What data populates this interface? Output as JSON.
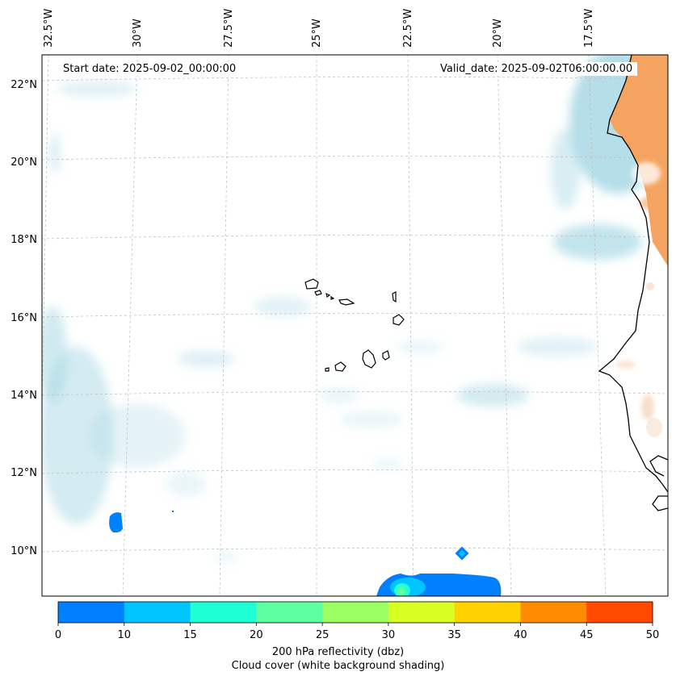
{
  "header": {
    "start_date": "Start date: 2025-09-02_00:00:00",
    "valid_date": "Valid_date: 2025-09-02T06:00:00.00"
  },
  "map": {
    "longitude_labels": [
      "32.5°W",
      "30°W",
      "27.5°W",
      "25°W",
      "22.5°W",
      "20°W",
      "17.5°W"
    ],
    "latitude_labels": [
      "22°N",
      "20°N",
      "18°N",
      "16°N",
      "14°N",
      "12°N",
      "10°N"
    ],
    "extent": {
      "lon_min": -33,
      "lon_max": -15.6,
      "lat_min": 8.9,
      "lat_max": 22.8
    },
    "features": [
      "Cabo Verde islands",
      "West African coastline"
    ],
    "colors": {
      "land_heat": "#f4a460",
      "cloud_shade": "#a8d8e4",
      "coastline": "#000000",
      "gridline": "#bbbbbb"
    }
  },
  "colorbar": {
    "levels": [
      0,
      10,
      15,
      20,
      25,
      30,
      35,
      40,
      45,
      50
    ],
    "tick_labels": [
      "0",
      "10",
      "15",
      "20",
      "25",
      "30",
      "35",
      "40",
      "45",
      "50"
    ],
    "colors": [
      "#007fff",
      "#00c4ff",
      "#1effd6",
      "#5dffa0",
      "#9aff60",
      "#d7ff24",
      "#ffd200",
      "#ff8c00",
      "#ff4a00"
    ],
    "title_line1": "200 hPa reflectivity (dbz)",
    "title_line2": "Cloud cover (white background shading)"
  }
}
